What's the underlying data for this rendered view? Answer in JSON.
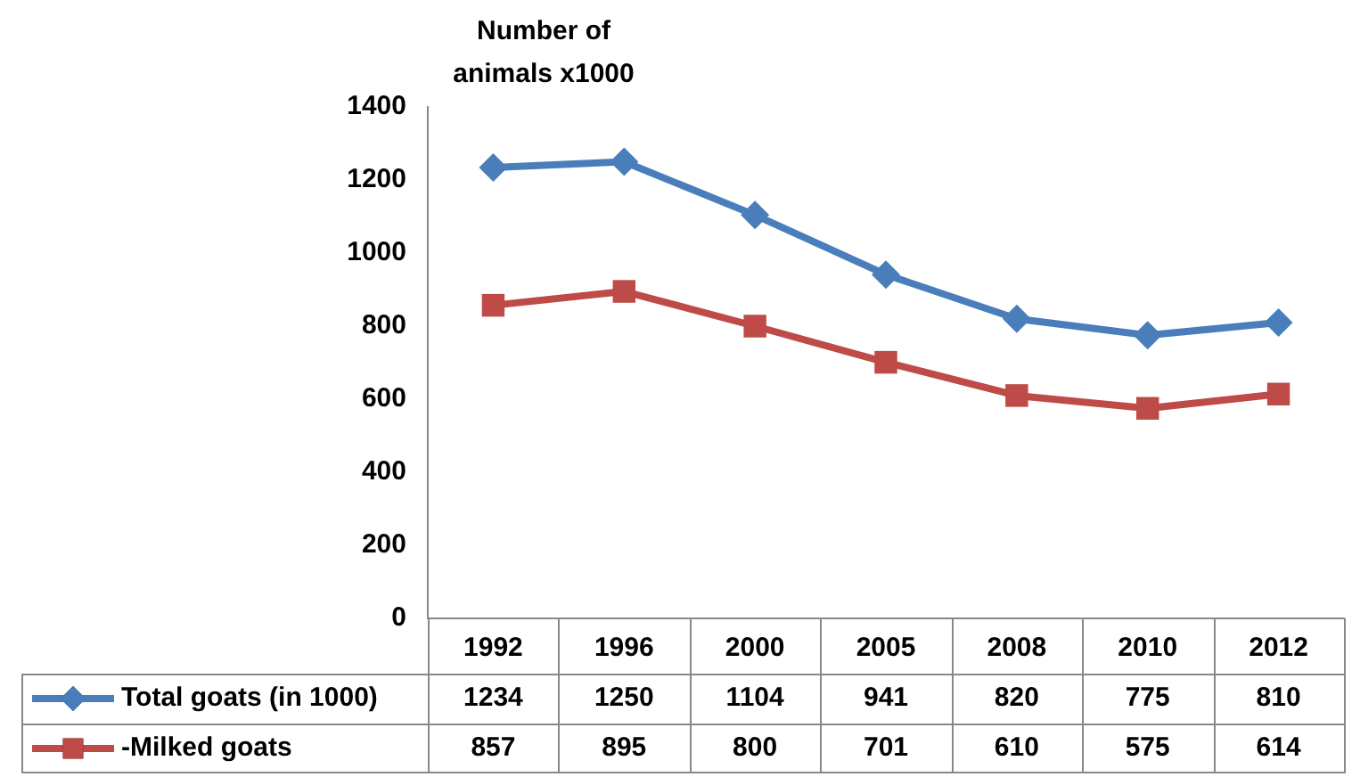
{
  "chart_data": {
    "type": "line",
    "ylabel": "Number of animals x1000",
    "categories": [
      "1992",
      "1996",
      "2000",
      "2005",
      "2008",
      "2010",
      "2012"
    ],
    "series": [
      {
        "name": "Total goats (in 1000)",
        "color": "#4a7ebb",
        "marker": "diamond",
        "values": [
          1234,
          1250,
          1104,
          941,
          820,
          775,
          810
        ]
      },
      {
        "name": "-Milked goats",
        "color": "#be4b48",
        "marker": "square",
        "values": [
          857,
          895,
          800,
          701,
          610,
          575,
          614
        ]
      }
    ],
    "ylim": [
      0,
      1400
    ],
    "yticks": [
      0,
      200,
      400,
      600,
      800,
      1000,
      1200,
      1400
    ],
    "grid": false,
    "legend": "bottom",
    "data_labels": true,
    "line_style": "solid"
  }
}
